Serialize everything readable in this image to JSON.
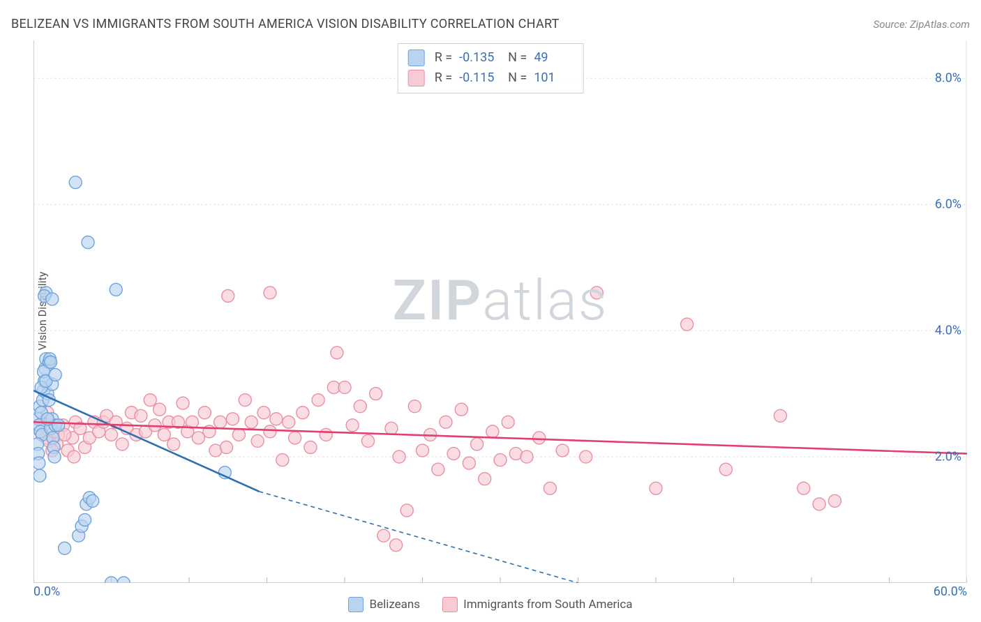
{
  "title": "BELIZEAN VS IMMIGRANTS FROM SOUTH AMERICA VISION DISABILITY CORRELATION CHART",
  "source_prefix": "Source: ",
  "source": "ZipAtlas.com",
  "ylabel": "Vision Disability",
  "watermark_a": "ZIP",
  "watermark_b": "atlas",
  "chart": {
    "type": "scatter",
    "xlim": [
      0,
      60
    ],
    "ylim": [
      0,
      8.6
    ],
    "xtick_step": 5,
    "yticks": [
      2.0,
      4.0,
      6.0,
      8.0
    ],
    "xlabel_min": "0.0%",
    "xlabel_max": "60.0%",
    "ylabel_ticks": [
      "2.0%",
      "4.0%",
      "6.0%",
      "8.0%"
    ],
    "background_color": "#ffffff",
    "grid_color": "#e2e2e2",
    "axis_color": "#bfbfbf",
    "tick_color": "#bfbfbf",
    "label_color": "#3b6fb5",
    "marker_radius": 9,
    "marker_stroke_width": 1.4,
    "series": [
      {
        "key": "belizeans",
        "label": "Belizeans",
        "fill": "#b9d4f0",
        "stroke": "#6fa3d9",
        "line_color": "#2f6fb0",
        "trend_solid": [
          [
            0,
            3.05
          ],
          [
            14.5,
            1.45
          ]
        ],
        "trend_dashed": [
          [
            14.5,
            1.45
          ],
          [
            35,
            0
          ]
        ],
        "R": "-0.135",
        "N": "49",
        "points": [
          [
            0.3,
            2.6
          ],
          [
            0.35,
            2.5
          ],
          [
            0.4,
            2.8
          ],
          [
            0.45,
            2.4
          ],
          [
            0.5,
            2.7
          ],
          [
            0.55,
            2.35
          ],
          [
            0.6,
            2.9
          ],
          [
            0.65,
            3.05
          ],
          [
            0.7,
            3.2
          ],
          [
            0.75,
            3.4
          ],
          [
            0.8,
            3.55
          ],
          [
            0.9,
            3.0
          ],
          [
            1.0,
            3.5
          ],
          [
            1.05,
            3.55
          ],
          [
            1.1,
            2.45
          ],
          [
            1.2,
            2.6
          ],
          [
            1.25,
            2.3
          ],
          [
            1.3,
            2.15
          ],
          [
            1.35,
            2.0
          ],
          [
            0.25,
            2.2
          ],
          [
            0.3,
            2.05
          ],
          [
            0.35,
            1.9
          ],
          [
            0.4,
            1.7
          ],
          [
            1.0,
            2.9
          ],
          [
            1.2,
            3.15
          ],
          [
            1.4,
            2.5
          ],
          [
            1.6,
            2.5
          ],
          [
            0.5,
            3.1
          ],
          [
            0.65,
            3.35
          ],
          [
            0.8,
            3.2
          ],
          [
            1.1,
            3.5
          ],
          [
            1.4,
            3.3
          ],
          [
            0.9,
            2.6
          ],
          [
            0.8,
            4.6
          ],
          [
            0.7,
            4.55
          ],
          [
            1.2,
            4.5
          ],
          [
            2.7,
            6.35
          ],
          [
            3.5,
            5.4
          ],
          [
            5.3,
            4.65
          ],
          [
            3.4,
            1.25
          ],
          [
            3.6,
            1.35
          ],
          [
            3.8,
            1.3
          ],
          [
            2.0,
            0.55
          ],
          [
            2.9,
            0.75
          ],
          [
            3.1,
            0.9
          ],
          [
            3.3,
            1.0
          ],
          [
            12.3,
            1.75
          ],
          [
            5.0,
            0.0
          ],
          [
            5.8,
            0.0
          ]
        ]
      },
      {
        "key": "sa",
        "label": "Immigrants from South America",
        "fill": "#f7cbd4",
        "stroke": "#e98fa4",
        "line_color": "#e23e6e",
        "trend_solid": [
          [
            0,
            2.55
          ],
          [
            60,
            2.05
          ]
        ],
        "trend_dashed": null,
        "R": "-0.115",
        "N": "101",
        "points": [
          [
            0.8,
            2.3
          ],
          [
            1.0,
            2.25
          ],
          [
            1.3,
            2.4
          ],
          [
            1.6,
            2.35
          ],
          [
            1.9,
            2.5
          ],
          [
            2.2,
            2.1
          ],
          [
            2.5,
            2.3
          ],
          [
            2.7,
            2.55
          ],
          [
            3.0,
            2.45
          ],
          [
            3.3,
            2.15
          ],
          [
            3.6,
            2.3
          ],
          [
            3.9,
            2.55
          ],
          [
            4.2,
            2.4
          ],
          [
            4.5,
            2.55
          ],
          [
            4.7,
            2.65
          ],
          [
            5.0,
            2.35
          ],
          [
            5.3,
            2.55
          ],
          [
            5.7,
            2.2
          ],
          [
            6.0,
            2.45
          ],
          [
            6.3,
            2.7
          ],
          [
            6.6,
            2.35
          ],
          [
            6.9,
            2.65
          ],
          [
            7.2,
            2.4
          ],
          [
            7.5,
            2.9
          ],
          [
            7.8,
            2.5
          ],
          [
            8.1,
            2.75
          ],
          [
            8.4,
            2.35
          ],
          [
            8.7,
            2.55
          ],
          [
            9.0,
            2.2
          ],
          [
            9.3,
            2.55
          ],
          [
            9.6,
            2.85
          ],
          [
            9.9,
            2.4
          ],
          [
            10.2,
            2.55
          ],
          [
            10.6,
            2.3
          ],
          [
            11.0,
            2.7
          ],
          [
            11.3,
            2.4
          ],
          [
            11.7,
            2.1
          ],
          [
            12.0,
            2.55
          ],
          [
            12.4,
            2.15
          ],
          [
            12.8,
            2.6
          ],
          [
            13.2,
            2.35
          ],
          [
            13.6,
            2.9
          ],
          [
            14.0,
            2.55
          ],
          [
            14.4,
            2.25
          ],
          [
            14.8,
            2.7
          ],
          [
            15.2,
            2.4
          ],
          [
            15.6,
            2.6
          ],
          [
            16.0,
            1.95
          ],
          [
            16.4,
            2.55
          ],
          [
            16.8,
            2.3
          ],
          [
            17.3,
            2.7
          ],
          [
            17.8,
            2.15
          ],
          [
            18.3,
            2.9
          ],
          [
            18.8,
            2.35
          ],
          [
            19.3,
            3.1
          ],
          [
            19.5,
            3.65
          ],
          [
            20.0,
            3.1
          ],
          [
            20.5,
            2.5
          ],
          [
            21.0,
            2.8
          ],
          [
            21.5,
            2.25
          ],
          [
            22.0,
            3.0
          ],
          [
            22.5,
            0.75
          ],
          [
            23.0,
            2.45
          ],
          [
            23.5,
            2.0
          ],
          [
            23.3,
            0.6
          ],
          [
            24.0,
            1.15
          ],
          [
            24.5,
            2.8
          ],
          [
            25.0,
            2.1
          ],
          [
            25.5,
            2.35
          ],
          [
            26.0,
            1.8
          ],
          [
            26.5,
            2.55
          ],
          [
            27.0,
            2.05
          ],
          [
            27.5,
            2.75
          ],
          [
            28.0,
            1.9
          ],
          [
            28.5,
            2.2
          ],
          [
            29.0,
            1.65
          ],
          [
            29.5,
            2.4
          ],
          [
            30.0,
            1.95
          ],
          [
            30.5,
            2.55
          ],
          [
            31.0,
            2.05
          ],
          [
            31.7,
            2.0
          ],
          [
            32.5,
            2.3
          ],
          [
            33.2,
            1.5
          ],
          [
            34.0,
            2.1
          ],
          [
            35.5,
            2.0
          ],
          [
            36.2,
            4.6
          ],
          [
            12.5,
            4.55
          ],
          [
            15.2,
            4.6
          ],
          [
            40.0,
            1.5
          ],
          [
            42.0,
            4.1
          ],
          [
            44.5,
            1.8
          ],
          [
            48.0,
            2.65
          ],
          [
            49.5,
            1.5
          ],
          [
            50.5,
            1.25
          ],
          [
            51.5,
            1.3
          ],
          [
            1.5,
            2.2
          ],
          [
            2.0,
            2.35
          ],
          [
            2.6,
            2.0
          ],
          [
            0.6,
            2.55
          ],
          [
            0.9,
            2.7
          ],
          [
            1.2,
            2.1
          ]
        ]
      }
    ]
  },
  "stats": {
    "R_label": "R =",
    "N_label": "N =",
    "value_color": "#3b6fb5"
  },
  "bottom_legend_labels": {
    "a": "Belizeans",
    "b": "Immigrants from South America"
  }
}
